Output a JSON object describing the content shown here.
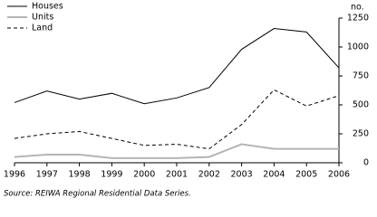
{
  "chart_data": {
    "type": "line",
    "ylabel": "no.",
    "source": "Source: REIWA Regional Residential Data Series.",
    "x": [
      1996,
      1997,
      1998,
      1999,
      2000,
      2001,
      2002,
      2003,
      2004,
      2005,
      2006
    ],
    "xlim": [
      1996,
      2006
    ],
    "xticks": [
      1996,
      1997,
      1998,
      1999,
      2000,
      2001,
      2002,
      2003,
      2004,
      2005,
      2006
    ],
    "ylim": [
      0,
      1250
    ],
    "yticks": [
      0,
      250,
      500,
      750,
      1000,
      1250
    ],
    "legend": "top-left",
    "series": [
      {
        "name": "Houses",
        "color": "#000000",
        "dashed": false,
        "values": [
          520,
          620,
          550,
          600,
          510,
          560,
          650,
          980,
          1160,
          1130,
          820
        ]
      },
      {
        "name": "Units",
        "color": "#b4b4b4",
        "dashed": false,
        "values": [
          50,
          70,
          70,
          40,
          40,
          40,
          50,
          160,
          120,
          120,
          120
        ]
      },
      {
        "name": "Land",
        "color": "#000000",
        "dashed": true,
        "values": [
          210,
          250,
          270,
          210,
          150,
          160,
          120,
          330,
          630,
          490,
          580
        ]
      }
    ]
  }
}
